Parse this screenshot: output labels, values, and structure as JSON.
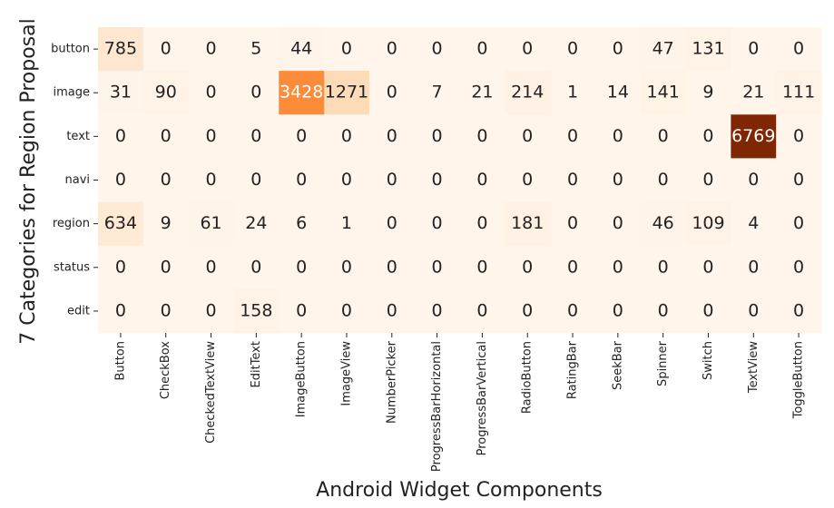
{
  "chart_data": {
    "type": "heatmap",
    "xlabel": "Android Widget Components",
    "ylabel": "7 Categories for Region Proposal",
    "x_categories": [
      "Button",
      "CheckBox",
      "CheckedTextView",
      "EditText",
      "ImageButton",
      "ImageView",
      "NumberPicker",
      "ProgressBarHorizontal",
      "ProgressBarVertical",
      "RadioButton",
      "RatingBar",
      "SeekBar",
      "Spinner",
      "Switch",
      "TextView",
      "ToggleButton"
    ],
    "y_categories": [
      "button",
      "image",
      "text",
      "navi",
      "region",
      "status",
      "edit"
    ],
    "values": [
      [
        785,
        0,
        0,
        5,
        44,
        0,
        0,
        0,
        0,
        0,
        0,
        0,
        47,
        131,
        0,
        0
      ],
      [
        31,
        90,
        0,
        0,
        3428,
        1271,
        0,
        7,
        21,
        214,
        1,
        14,
        141,
        9,
        21,
        111
      ],
      [
        0,
        0,
        0,
        0,
        0,
        0,
        0,
        0,
        0,
        0,
        0,
        0,
        0,
        0,
        6769,
        0
      ],
      [
        0,
        0,
        0,
        0,
        0,
        0,
        0,
        0,
        0,
        0,
        0,
        0,
        0,
        0,
        0,
        0
      ],
      [
        634,
        9,
        61,
        24,
        6,
        1,
        0,
        0,
        0,
        181,
        0,
        0,
        46,
        109,
        4,
        0
      ],
      [
        0,
        0,
        0,
        0,
        0,
        0,
        0,
        0,
        0,
        0,
        0,
        0,
        0,
        0,
        0,
        0
      ],
      [
        0,
        0,
        0,
        158,
        0,
        0,
        0,
        0,
        0,
        0,
        0,
        0,
        0,
        0,
        0,
        0
      ]
    ],
    "colormap": "Oranges"
  }
}
